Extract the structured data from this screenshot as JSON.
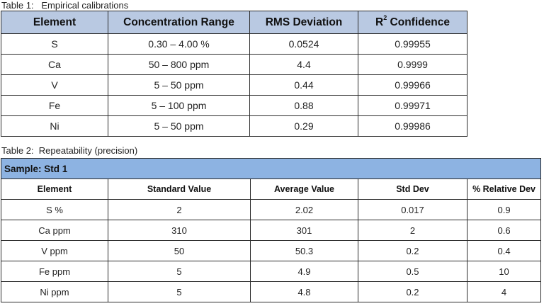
{
  "table1": {
    "caption": "Table 1:   Empirical calibrations",
    "headers": {
      "element": "Element",
      "range": "Concentration Range",
      "rms": "RMS Deviation",
      "r_label": "R",
      "r_sup": "2",
      "r_rest": " Confidence"
    },
    "rows": [
      {
        "element": "S",
        "range": "0.30 – 4.00 %",
        "rms": "0.0524",
        "r2": "0.99955"
      },
      {
        "element": "Ca",
        "range": "50 – 800 ppm",
        "rms": "4.4",
        "r2": "0.9999"
      },
      {
        "element": "V",
        "range": "5 – 50 ppm",
        "rms": "0.44",
        "r2": "0.99966"
      },
      {
        "element": "Fe",
        "range": "5 – 100 ppm",
        "rms": "0.88",
        "r2": "0.99971"
      },
      {
        "element": "Ni",
        "range": "5 – 50 ppm",
        "rms": "0.29",
        "r2": "0.99986"
      }
    ]
  },
  "table2": {
    "caption": "Table 2:  Repeatability (precision)",
    "sample": "Sample:  Std 1",
    "headers": [
      "Element",
      "Standard Value",
      "Average Value",
      "Std Dev",
      "% Relative Dev"
    ],
    "rows": [
      [
        "S %",
        "2",
        "2.02",
        "0.017",
        "0.9"
      ],
      [
        "Ca ppm",
        "310",
        "301",
        "2",
        "0.6"
      ],
      [
        "V ppm",
        "50",
        "50.3",
        "0.2",
        "0.4"
      ],
      [
        "Fe ppm",
        "5",
        "4.9",
        "0.5",
        "10"
      ],
      [
        "Ni ppm",
        "5",
        "4.8",
        "0.2",
        "4"
      ]
    ]
  }
}
